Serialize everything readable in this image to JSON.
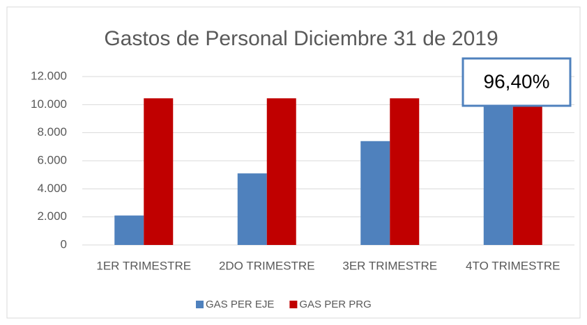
{
  "chart_data": {
    "type": "bar",
    "title": "Gastos de Personal Diciembre 31 de 2019",
    "categories": [
      "1ER TRIMESTRE",
      "2DO TRIMESTRE",
      "3ER TRIMESTRE",
      "4TO TRIMESTRE"
    ],
    "series": [
      {
        "name": "GAS PER EJE",
        "color": "#4f81bd",
        "values": [
          2100,
          5100,
          7400,
          10074
        ]
      },
      {
        "name": "GAS PER PRG",
        "color": "#c00000",
        "values": [
          10450,
          10450,
          10450,
          10450
        ]
      }
    ],
    "ylim": [
      0,
      12000
    ],
    "yticks": [
      0,
      {
        "value": 2000,
        "label": "2.000"
      },
      {
        "value": 4000,
        "label": "4.000"
      },
      {
        "value": 6000,
        "label": "6.000"
      },
      {
        "value": 8000,
        "label": "8.000"
      },
      {
        "value": 10000,
        "label": "10.000"
      },
      {
        "value": 12000,
        "label": "12.000"
      }
    ],
    "grid": true,
    "legend": "bottom",
    "annotation": "96,40%"
  }
}
